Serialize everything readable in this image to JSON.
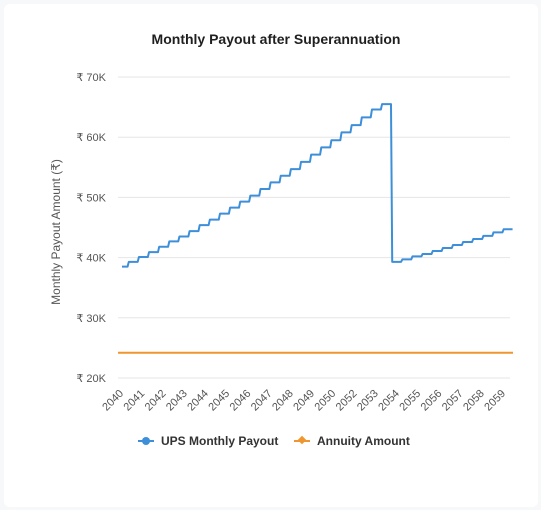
{
  "chart_data": {
    "type": "line",
    "title": "Monthly Payout after Superannuation",
    "xlabel": "",
    "ylabel": "Monthly Payout Amount (₹)",
    "y_tick_labels": [
      "₹ 20K",
      "₹ 30K",
      "₹ 40K",
      "₹ 50K",
      "₹ 60K",
      "₹ 70K"
    ],
    "y_tick_values": [
      20000,
      30000,
      40000,
      50000,
      60000,
      70000
    ],
    "ylim": [
      20000,
      70000
    ],
    "x_tick_labels": [
      "2040",
      "2041",
      "2042",
      "2043",
      "2044",
      "2045",
      "2046",
      "2047",
      "2048",
      "2049",
      "2050",
      "2052",
      "2053",
      "2054",
      "2055",
      "2056",
      "2057",
      "2058",
      "2059"
    ],
    "grid": true,
    "legend_position": "bottom",
    "series": [
      {
        "name": "UPS Monthly Payout",
        "color": "#3d8fd9",
        "marker": "circle",
        "step_years": [
          2040,
          2041,
          2042,
          2043,
          2044,
          2045,
          2046,
          2047,
          2048,
          2049,
          2050,
          2051,
          2052,
          2053,
          2054,
          2055,
          2056,
          2057,
          2058,
          2059
        ],
        "values": [
          38500,
          39300,
          40100,
          40900,
          41800,
          42700,
          43500,
          44400,
          45400,
          46300,
          47300,
          48300,
          49300,
          50300,
          51400,
          52500,
          53600,
          54700,
          55900,
          57100,
          58300,
          59500,
          60800,
          62000,
          63300,
          64600,
          65500,
          39300,
          39700,
          40200,
          40600,
          41100,
          41600,
          42100,
          42600,
          43100,
          43600,
          44200,
          44700
        ]
      },
      {
        "name": "Annuity Amount",
        "color": "#f0962e",
        "marker": "diamond",
        "values": [
          24200,
          24200
        ]
      }
    ]
  }
}
